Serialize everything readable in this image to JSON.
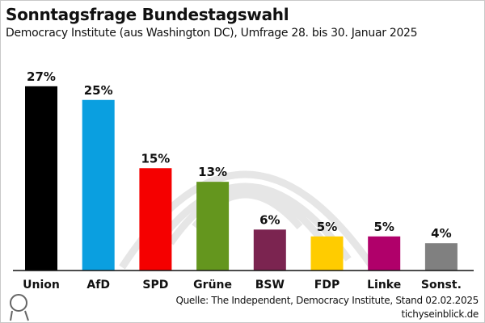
{
  "header": {
    "title": "Sonntagsfrage Bundestagswahl",
    "subtitle": "Democracy Institute (aus Washington DC), Umfrage 28. bis 30. Januar 2025"
  },
  "footer": {
    "source": "Quelle: The Independent, Democracy Institute, Stand 02.02.2025",
    "site": "tichyseinblick.de",
    "logo": "tichyseinblick-head-logo"
  },
  "chart_data": {
    "type": "bar",
    "title": "Sonntagsfrage Bundestagswahl",
    "categories": [
      "Union",
      "AfD",
      "SPD",
      "Grüne",
      "BSW",
      "FDP",
      "Linke",
      "Sonst."
    ],
    "values": [
      27,
      25,
      15,
      13,
      6,
      5,
      5,
      4
    ],
    "labels": [
      "27%",
      "25%",
      "15%",
      "13%",
      "6%",
      "5%",
      "5%",
      "4%"
    ],
    "colors": [
      "#000000",
      "#0A9FE0",
      "#F50000",
      "#64961E",
      "#7B2450",
      "#FFCC00",
      "#B0006A",
      "#808080"
    ],
    "unit": "%",
    "ylim": [
      0,
      27
    ],
    "grid": false,
    "legend": "none"
  }
}
